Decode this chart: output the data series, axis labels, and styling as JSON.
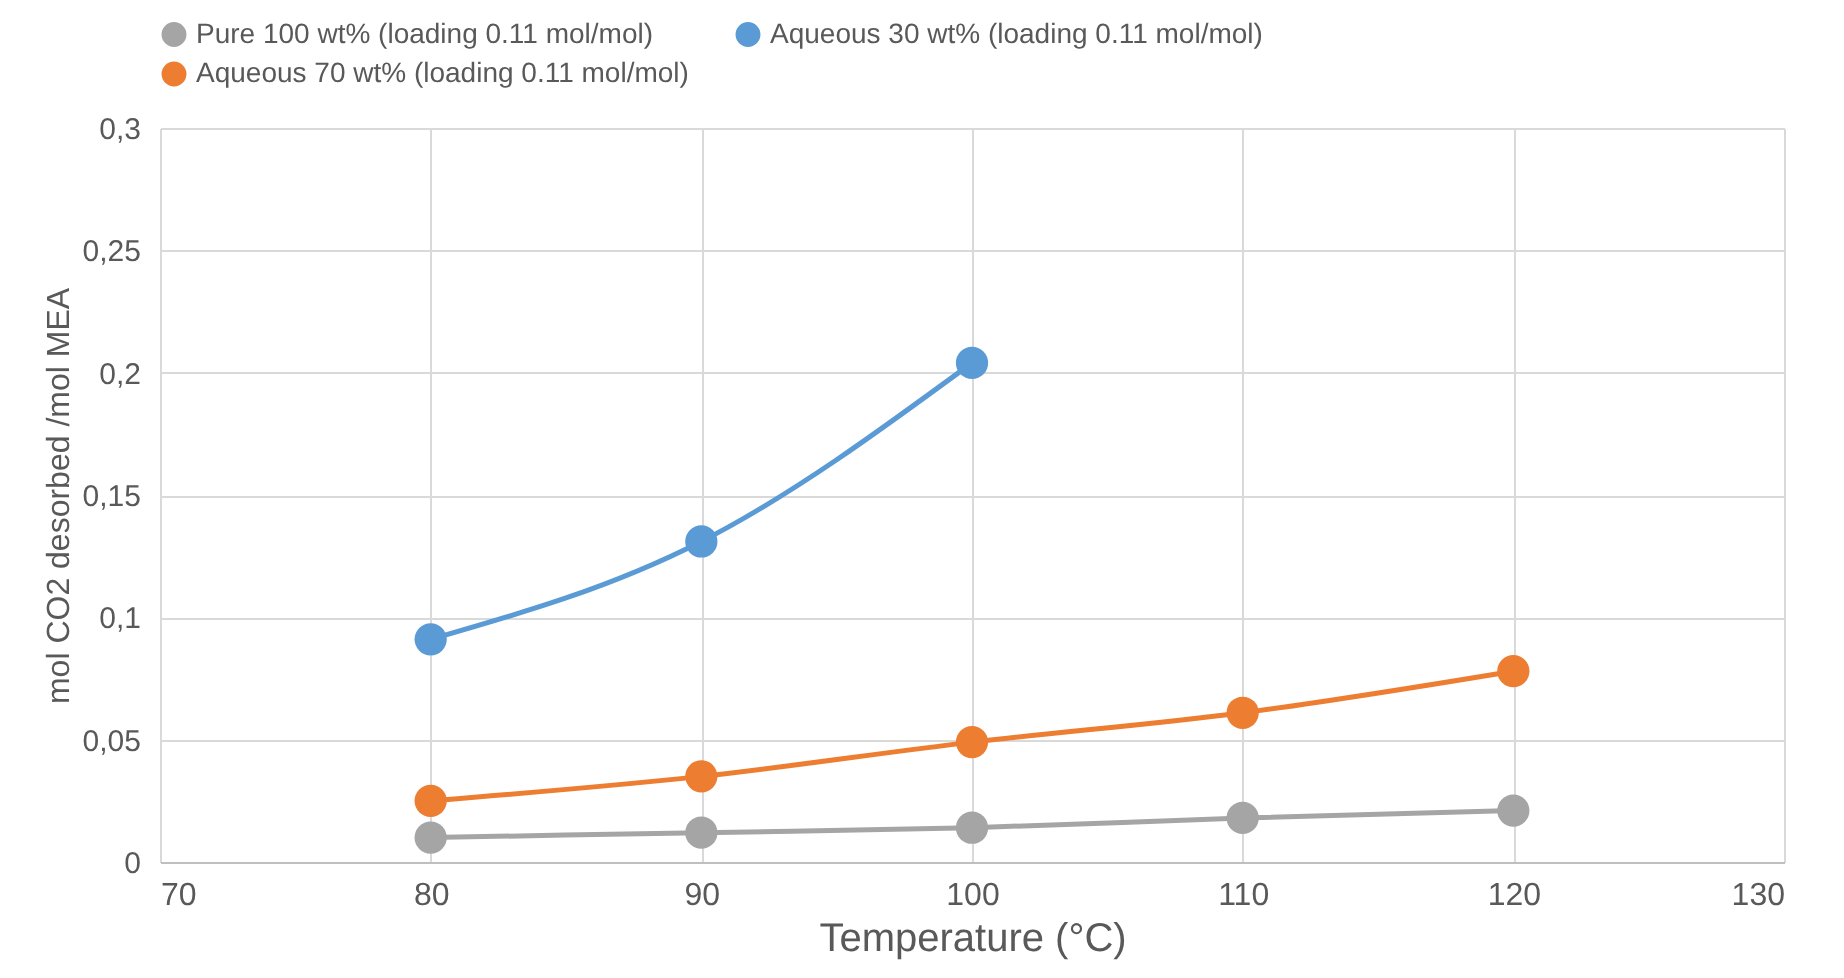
{
  "chart_data": {
    "type": "line",
    "xlabel": "Temperature (°C)",
    "ylabel": "mol CO2 desorbed /mol MEA",
    "series": [
      {
        "name": "Pure 100 wt% (loading 0.11 mol/mol)",
        "color": "#a5a5a5",
        "x": [
          80,
          90,
          100,
          110,
          120
        ],
        "values": [
          0.01,
          0.012,
          0.014,
          0.018,
          0.021
        ]
      },
      {
        "name": "Aqueous 30 wt% (loading 0.11 mol/mol)",
        "color": "#5b9bd5",
        "x": [
          80,
          90,
          100
        ],
        "values": [
          0.091,
          0.131,
          0.204
        ]
      },
      {
        "name": "Aqueous 70 wt% (loading 0.11 mol/mol)",
        "color": "#ed7d31",
        "x": [
          80,
          90,
          100,
          110,
          120
        ],
        "values": [
          0.025,
          0.035,
          0.049,
          0.061,
          0.078
        ]
      }
    ],
    "xlim": [
      70,
      130
    ],
    "xticks": [
      70,
      80,
      90,
      100,
      110,
      120,
      130
    ],
    "ylim": [
      0,
      0.3
    ],
    "yticks": [
      0,
      {
        "value": 0.05,
        "label": "0,05"
      },
      {
        "value": 0.1,
        "label": "0,1"
      },
      {
        "value": 0.15,
        "label": "0,15"
      },
      {
        "value": 0.2,
        "label": "0,2"
      },
      {
        "value": 0.25,
        "label": "0,25"
      },
      {
        "value": 0.3,
        "label": "0,3"
      }
    ],
    "grid": true,
    "legend": "top",
    "marker": "circle",
    "line_style": "solid"
  }
}
